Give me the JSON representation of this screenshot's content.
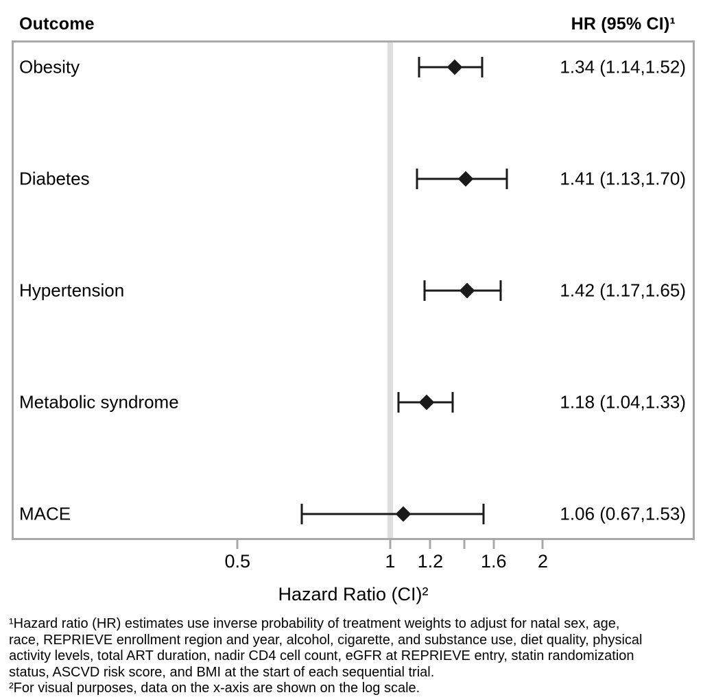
{
  "header": {
    "outcome_col": "Outcome",
    "hr_col": "HR (95% CI)¹"
  },
  "chart_data": {
    "type": "forest",
    "x_scale": "log",
    "x_domain": [
      0.181,
      3.95
    ],
    "reference_line": 1.0,
    "xlabel": "Hazard Ratio (CI)²",
    "x_ticks": [
      {
        "value": 0.5,
        "label": "0.5"
      },
      {
        "value": 1.0,
        "label": "1"
      },
      {
        "value": 1.2,
        "label": "1.2"
      },
      {
        "value": 1.4,
        "label": ""
      },
      {
        "value": 1.6,
        "label": "1.6"
      },
      {
        "value": 2.0,
        "label": "2"
      }
    ],
    "rows": [
      {
        "outcome": "Obesity",
        "hr": 1.34,
        "ci_lower": 1.14,
        "ci_upper": 1.52,
        "display": "1.34 (1.14,1.52)"
      },
      {
        "outcome": "Diabetes",
        "hr": 1.41,
        "ci_lower": 1.13,
        "ci_upper": 1.7,
        "display": "1.41 (1.13,1.70)"
      },
      {
        "outcome": "Hypertension",
        "hr": 1.42,
        "ci_lower": 1.17,
        "ci_upper": 1.65,
        "display": "1.42 (1.17,1.65)"
      },
      {
        "outcome": "Metabolic syndrome",
        "hr": 1.18,
        "ci_lower": 1.04,
        "ci_upper": 1.33,
        "display": "1.18 (1.04,1.33)"
      },
      {
        "outcome": "MACE",
        "hr": 1.06,
        "ci_lower": 0.67,
        "ci_upper": 1.53,
        "display": "1.06 (0.67,1.53)"
      }
    ]
  },
  "footnotes": {
    "lines": [
      "¹Hazard ratio (HR) estimates use inverse probability of treatment weights to adjust for natal sex, age,",
      "race, REPRIEVE enrollment region and year, alcohol, cigarette, and substance use, diet quality, physical",
      "activity levels, total ART duration, nadir CD4 cell count, eGFR at REPRIEVE entry, statin randomization",
      "status, ASCVD risk score, and BMI at the start of each sequential trial.",
      "²For visual purposes, data on the x-axis are shown on the log scale."
    ]
  },
  "colors": {
    "marker": "#1a1a1a",
    "ci_line": "#1a1a1a",
    "plot_border": "#a8a8a8",
    "reference_line": "#dedede",
    "text": "#000000"
  }
}
